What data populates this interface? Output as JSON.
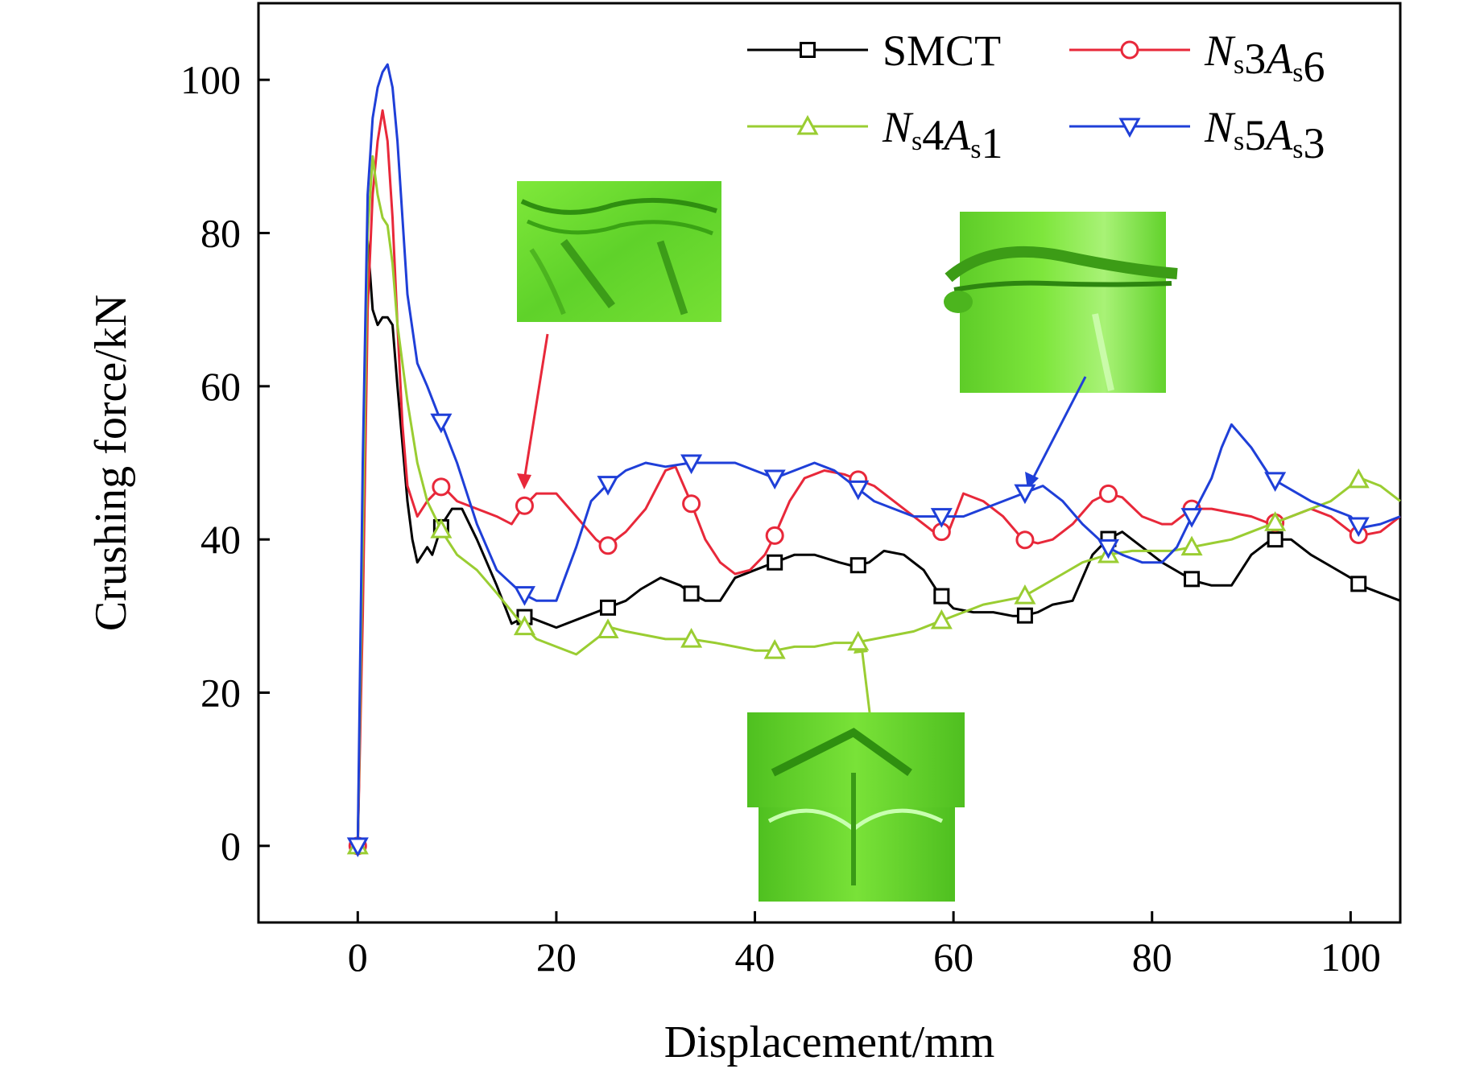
{
  "chart_data": {
    "type": "line",
    "title": "",
    "xlabel": "Displacement/mm",
    "ylabel": "Crushing force/kN",
    "xlim": [
      -10,
      105
    ],
    "ylim": [
      -10,
      110
    ],
    "xticks": [
      0,
      20,
      40,
      60,
      80,
      100
    ],
    "yticks": [
      0,
      20,
      40,
      60,
      80,
      100
    ],
    "grid": false,
    "legend_position": "top-right",
    "series": [
      {
        "name": "SMCT",
        "legend": {
          "parts": [
            {
              "t": "SMCT",
              "i": false
            }
          ]
        },
        "color": "#000000",
        "marker": "square",
        "x": [
          0,
          0.5,
          1.0,
          1.5,
          2.0,
          2.5,
          3.0,
          3.5,
          4.0,
          5.0,
          5.5,
          6.0,
          6.5,
          7.0,
          7.5,
          8.5,
          9.5,
          10.5,
          12.0,
          14.0,
          15.5,
          17.0,
          20.0,
          23.0,
          25.0,
          27.0,
          28.5,
          30.5,
          32.5,
          33.5,
          35.0,
          36.5,
          38.0,
          40.0,
          42.0,
          44.0,
          46.0,
          48.5,
          50.0,
          51.5,
          53.0,
          55.0,
          57.0,
          58.5,
          60.0,
          62.0,
          64.0,
          66.0,
          67.0,
          68.5,
          70.0,
          72.0,
          74.0,
          75.5,
          77.0,
          79.0,
          81.0,
          83.0,
          84.5,
          86.0,
          88.0,
          90.0,
          92.0,
          94.0,
          96.0,
          98.0,
          100.0,
          101.0,
          103.0,
          105.0
        ],
        "y": [
          0,
          35,
          79,
          70,
          68,
          69,
          69,
          68,
          60,
          45,
          40,
          37,
          38,
          39,
          38,
          42,
          44,
          44,
          40,
          34,
          29,
          30,
          28.5,
          30,
          31,
          32,
          33.5,
          35,
          34,
          33,
          32,
          32,
          35,
          36,
          37,
          38,
          38,
          37,
          36.5,
          37,
          38.5,
          38,
          36,
          33,
          31,
          30.5,
          30.5,
          30,
          30,
          30.5,
          31.5,
          32,
          38,
          40,
          41,
          39,
          37,
          35.5,
          34.5,
          34,
          34,
          38,
          40,
          40,
          38,
          36.5,
          35,
          34,
          33,
          32
        ]
      },
      {
        "name": "NS3AS6",
        "legend": {
          "parts": [
            {
              "t": "N",
              "i": true
            },
            {
              "t": "s",
              "i": false,
              "sub": true
            },
            {
              "t": "3",
              "i": false
            },
            {
              "t": "A",
              "i": true
            },
            {
              "t": "s",
              "i": false,
              "sub": true
            },
            {
              "t": "6",
              "i": false
            }
          ]
        },
        "color": "#e8283a",
        "marker": "circle",
        "x": [
          0,
          0.5,
          1.0,
          1.5,
          2.0,
          2.5,
          3.0,
          3.5,
          4.0,
          4.5,
          5.0,
          5.5,
          6.0,
          7.0,
          8.5,
          10.0,
          12.0,
          14.0,
          15.5,
          16.5,
          18.0,
          20.0,
          22.0,
          24.0,
          25.0,
          27.0,
          29.0,
          31.0,
          32.0,
          33.5,
          35.0,
          36.5,
          38.0,
          39.5,
          41.0,
          42.0,
          43.5,
          45.0,
          47.0,
          49.0,
          50.0,
          52.0,
          54.0,
          56.0,
          58.0,
          59.5,
          61.0,
          63.0,
          65.0,
          67.0,
          68.5,
          70.0,
          72.0,
          74.0,
          75.5,
          77.0,
          79.0,
          81.0,
          82.0,
          84.0,
          86.0,
          88.0,
          90.0,
          92.0,
          94.0,
          96.0,
          98.0,
          100.0,
          101.0,
          103.0,
          105.0
        ],
        "y": [
          0,
          30,
          70,
          85,
          92,
          96,
          92,
          82,
          68,
          55,
          47,
          45,
          43,
          45,
          47,
          45,
          44,
          43,
          42,
          44,
          46,
          46,
          43,
          40,
          39,
          41,
          44,
          49,
          49.5,
          45,
          40,
          37,
          35.5,
          36,
          38,
          40.5,
          45,
          48,
          49,
          48.5,
          48,
          47,
          45,
          43,
          41,
          41,
          46,
          45,
          43,
          40,
          39.5,
          40,
          42,
          45,
          46,
          45.5,
          43,
          42,
          42,
          44,
          44,
          43.5,
          43,
          42,
          43,
          44,
          43,
          41,
          40.5,
          41,
          43
        ]
      },
      {
        "name": "NS4AS1",
        "legend": {
          "parts": [
            {
              "t": "N",
              "i": true
            },
            {
              "t": "s",
              "i": false,
              "sub": true
            },
            {
              "t": "4",
              "i": false
            },
            {
              "t": "A",
              "i": true
            },
            {
              "t": "s",
              "i": false,
              "sub": true
            },
            {
              "t": "1",
              "i": false
            }
          ]
        },
        "color": "#9acd32",
        "marker": "triangle-up",
        "x": [
          0,
          0.5,
          1.0,
          1.5,
          2.0,
          2.5,
          3.0,
          3.5,
          4.0,
          5.0,
          6.0,
          7.0,
          8.5,
          10.0,
          12.0,
          14.0,
          16.5,
          18.0,
          20.0,
          22.0,
          24.0,
          25.5,
          27.0,
          29.0,
          31.0,
          33.5,
          36.0,
          38.0,
          40.0,
          42.0,
          44.0,
          46.0,
          48.0,
          50.0,
          52.0,
          54.0,
          56.0,
          58.0,
          59.0,
          61.0,
          63.0,
          65.0,
          67.0,
          69.0,
          71.0,
          73.0,
          75.5,
          78.0,
          80.0,
          82.0,
          84.0,
          86.0,
          88.0,
          90.0,
          92.0,
          94.0,
          96.0,
          98.0,
          100.0,
          101.0,
          103.0,
          105.0
        ],
        "y": [
          0,
          40,
          80,
          90,
          85,
          82,
          81,
          76,
          68,
          58,
          50,
          45,
          41,
          38,
          36,
          33,
          29,
          27,
          26,
          25,
          27,
          28.5,
          28,
          27.5,
          27,
          27,
          26.5,
          26,
          25.5,
          25.5,
          26,
          26,
          26.5,
          26.5,
          27,
          27.5,
          28,
          29,
          29.5,
          30.5,
          31.5,
          32,
          32.5,
          34,
          35.5,
          37,
          38,
          38.5,
          38.5,
          38.5,
          39,
          39.5,
          40,
          41,
          42,
          43,
          44,
          45,
          47,
          48,
          47,
          45
        ]
      },
      {
        "name": "NS5AS3",
        "legend": {
          "parts": [
            {
              "t": "N",
              "i": true
            },
            {
              "t": "s",
              "i": false,
              "sub": true
            },
            {
              "t": "5",
              "i": false
            },
            {
              "t": "A",
              "i": true
            },
            {
              "t": "s",
              "i": false,
              "sub": true
            },
            {
              "t": "3",
              "i": false
            }
          ]
        },
        "color": "#1f3fd8",
        "marker": "triangle-down",
        "x": [
          0,
          0.5,
          1.0,
          1.5,
          2.0,
          2.5,
          3.0,
          3.5,
          4.0,
          4.5,
          5.0,
          6.0,
          7.0,
          8.5,
          10.0,
          12.0,
          14.0,
          16.5,
          18.0,
          20.0,
          22.0,
          23.5,
          25.0,
          27.0,
          29.0,
          31.0,
          33.5,
          36.0,
          38.0,
          40.0,
          42.0,
          44.0,
          46.0,
          48.0,
          50.0,
          52.0,
          54.0,
          56.0,
          58.5,
          61.0,
          63.0,
          65.0,
          67.0,
          69.0,
          71.0,
          73.0,
          75.5,
          77.0,
          79.0,
          81.0,
          82.5,
          84.0,
          86.0,
          87.0,
          88.0,
          90.0,
          92.0,
          94.0,
          96.0,
          98.0,
          100.0,
          101.0,
          103.0,
          105.0
        ],
        "y": [
          0,
          50,
          85,
          95,
          99,
          101,
          102,
          99,
          92,
          82,
          72,
          63,
          60,
          55,
          50,
          42,
          36,
          33,
          32,
          32,
          39,
          45,
          47,
          49,
          50,
          49.5,
          50,
          50,
          50,
          49,
          48,
          49,
          50,
          49,
          47,
          45,
          44,
          43,
          43,
          43,
          44,
          45,
          46,
          47,
          45,
          42,
          39,
          38,
          37,
          37,
          39,
          43,
          48,
          52,
          55,
          52,
          48,
          46.5,
          45,
          44,
          43,
          41.5,
          42,
          43
        ]
      }
    ]
  },
  "annotations": {
    "insets": [
      {
        "name": "deformation-inset-NS3AS6",
        "color": "#6bdc2c"
      },
      {
        "name": "deformation-inset-NS5AS3",
        "color": "#6bdc2c"
      },
      {
        "name": "deformation-inset-NS4AS1",
        "color": "#6bdc2c"
      }
    ]
  }
}
